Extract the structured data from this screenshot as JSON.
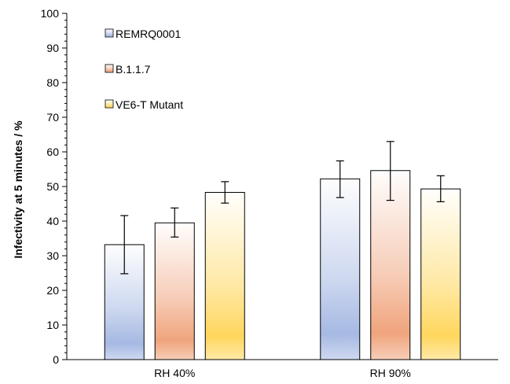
{
  "chart_data": {
    "type": "bar",
    "title": "",
    "xlabel": "",
    "ylabel": "Infectivity at 5 minutes / %",
    "ylim": [
      0,
      100
    ],
    "yticks": [
      0,
      10,
      20,
      30,
      40,
      50,
      60,
      70,
      80,
      90,
      100
    ],
    "categories": [
      "RH 40%",
      "RH 90%"
    ],
    "grid": false,
    "legend_position": "top-left",
    "series": [
      {
        "name": "REMRQ0001",
        "color": "#a6b9e3",
        "values": [
          33.2,
          52.2
        ],
        "err_low": [
          24.8,
          46.8
        ],
        "err_high": [
          41.6,
          57.4
        ]
      },
      {
        "name": "B.1.1.7",
        "color": "#f0a47d",
        "values": [
          39.5,
          54.6
        ],
        "err_low": [
          35.4,
          46.0
        ],
        "err_high": [
          43.8,
          63.0
        ]
      },
      {
        "name": "VE6-T Mutant",
        "color": "#ffd75e",
        "values": [
          48.3,
          49.3
        ],
        "err_low": [
          45.2,
          45.6
        ],
        "err_high": [
          51.4,
          53.1
        ]
      }
    ]
  }
}
